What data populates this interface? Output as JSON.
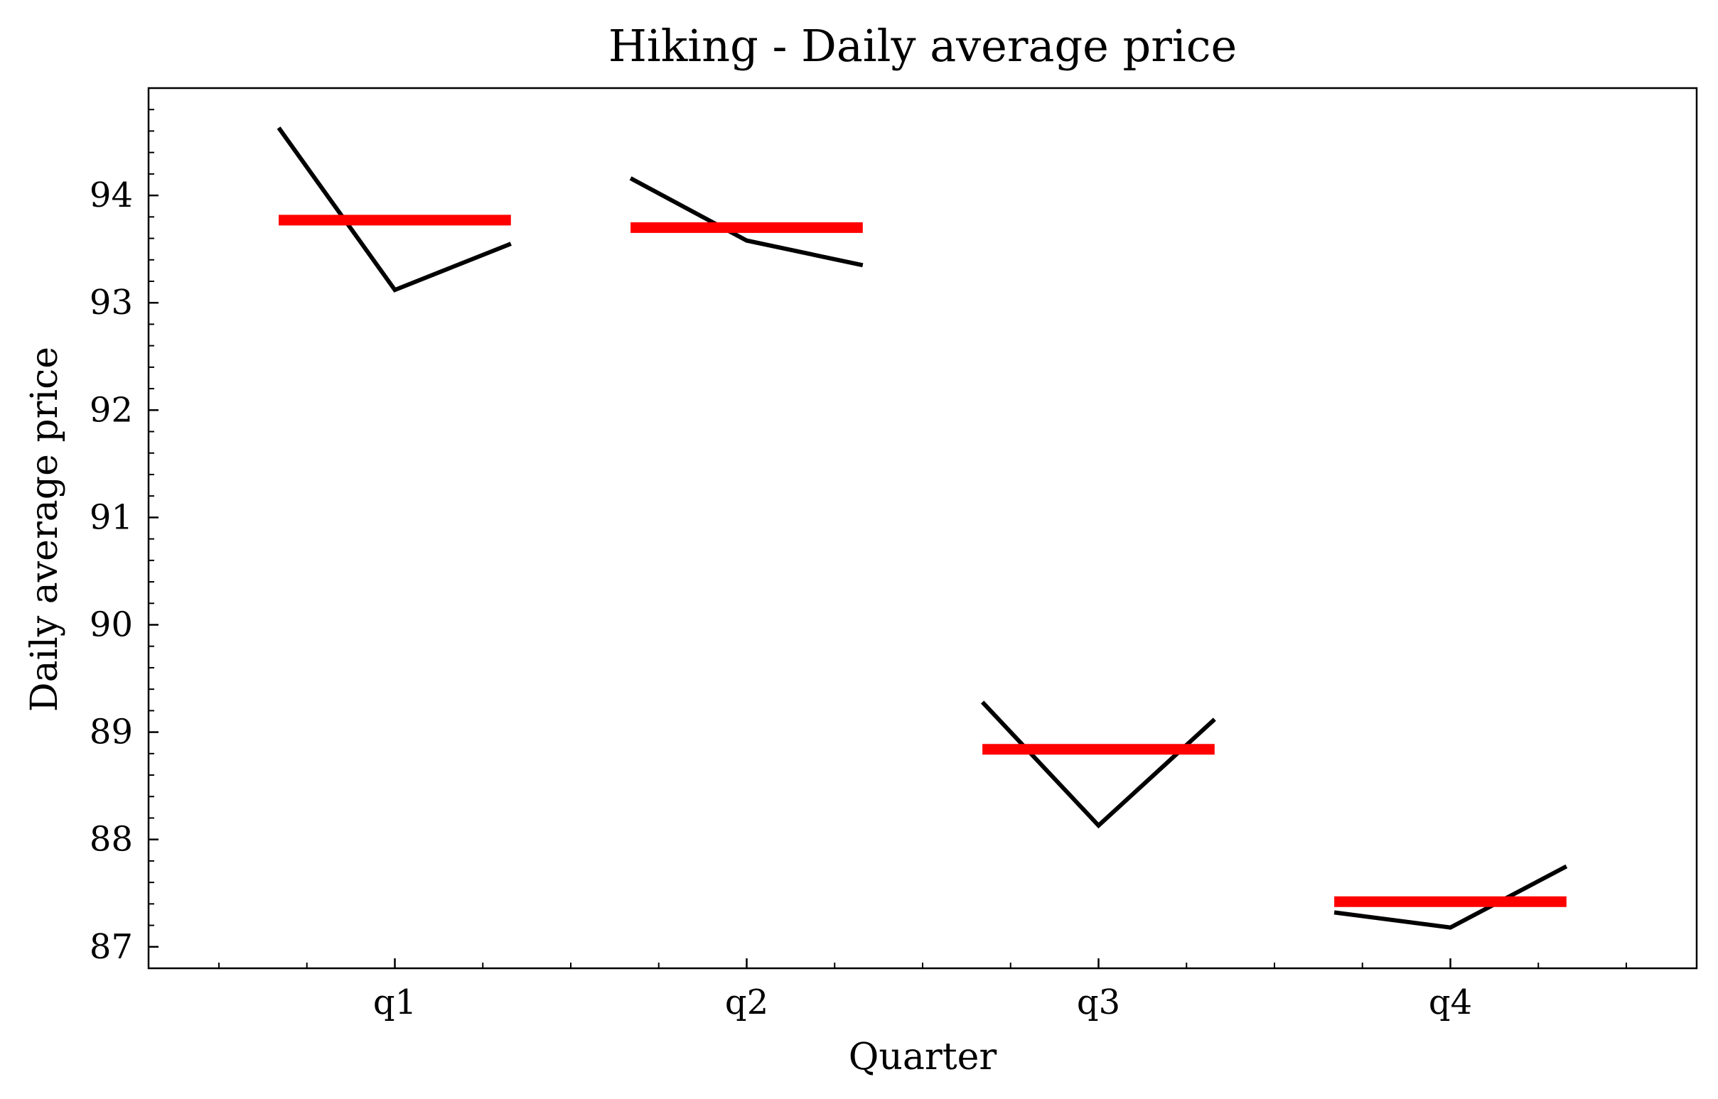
{
  "chart_data": {
    "type": "line",
    "title": "Hiking - Daily average price",
    "xlabel": "Quarter",
    "ylabel": "Daily average price",
    "categories": [
      "q1",
      "q2",
      "q3",
      "q4"
    ],
    "ylim": [
      86.8,
      95.0
    ],
    "yticks": [
      87,
      88,
      89,
      90,
      91,
      92,
      93,
      94
    ],
    "ytick_labels": [
      "87",
      "88",
      "89",
      "90",
      "91",
      "92",
      "93",
      "94"
    ],
    "grid": false,
    "series": [
      {
        "color": "#000000",
        "groups": [
          {
            "category": "q1",
            "values": [
              94.63,
              93.12,
              93.55
            ]
          },
          {
            "category": "q2",
            "values": [
              94.16,
              93.58,
              93.35
            ]
          },
          {
            "category": "q3",
            "values": [
              89.28,
              88.13,
              89.12
            ]
          },
          {
            "category": "q4",
            "values": [
              87.32,
              87.18,
              87.75
            ]
          }
        ]
      },
      {
        "color": "#ff0000",
        "groups": [
          {
            "category": "q1",
            "value": 93.77
          },
          {
            "category": "q2",
            "value": 93.7
          },
          {
            "category": "q3",
            "value": 88.84
          },
          {
            "category": "q4",
            "value": 87.42
          }
        ]
      }
    ]
  }
}
